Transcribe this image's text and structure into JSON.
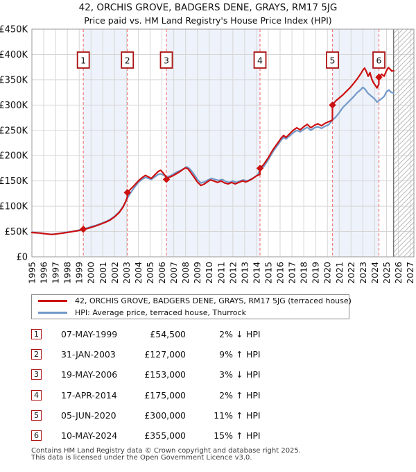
{
  "title": "42, ORCHIS GROVE, BADGERS DENE, GRAYS, RM17 5JG",
  "subtitle": "Price paid vs. HM Land Registry's House Price Index (HPI)",
  "legend": {
    "items": [
      {
        "label": "42, ORCHIS GROVE, BADGERS DENE, GRAYS, RM17 5JG (terraced house)",
        "color": "#cc1111"
      },
      {
        "label": "HPI: Average price, terraced house, Thurrock",
        "color": "#7099c9"
      }
    ]
  },
  "sales": [
    {
      "n": "1",
      "date": "07-MAY-1999",
      "price": "£54,500",
      "pct": "2%",
      "arrow": "↓",
      "hpi": "HPI",
      "year": 1999.35,
      "price_k": 54.5
    },
    {
      "n": "2",
      "date": "31-JAN-2003",
      "price": "£127,000",
      "pct": "9%",
      "arrow": "↑",
      "hpi": "HPI",
      "year": 2003.08,
      "price_k": 127
    },
    {
      "n": "3",
      "date": "19-MAY-2006",
      "price": "£153,000",
      "pct": "3%",
      "arrow": "↓",
      "hpi": "HPI",
      "year": 2006.38,
      "price_k": 153
    },
    {
      "n": "4",
      "date": "17-APR-2014",
      "price": "£175,000",
      "pct": "2%",
      "arrow": "↑",
      "hpi": "HPI",
      "year": 2014.3,
      "price_k": 175
    },
    {
      "n": "5",
      "date": "05-JUN-2020",
      "price": "£300,000",
      "pct": "11%",
      "arrow": "↑",
      "hpi": "HPI",
      "year": 2020.43,
      "price_k": 300
    },
    {
      "n": "6",
      "date": "10-MAY-2024",
      "price": "£355,000",
      "pct": "15%",
      "arrow": "↑",
      "hpi": "HPI",
      "year": 2024.36,
      "price_k": 355
    }
  ],
  "footer": {
    "line1": "Contains HM Land Registry data © Crown copyright and database right 2025.",
    "line2": "This data is licensed under the Open Government Licence v3.0."
  },
  "chart_data": {
    "type": "line",
    "title": "Price paid vs. HM Land Registry's House Price Index (HPI)",
    "y_unit": "GBP (thousands)",
    "x_range": [
      1995,
      2027.32
    ],
    "y_range": [
      0,
      450
    ],
    "y_ticks": [
      {
        "v": 0,
        "label": "£0"
      },
      {
        "v": 50,
        "label": "£50K"
      },
      {
        "v": 100,
        "label": "£100K"
      },
      {
        "v": 150,
        "label": "£150K"
      },
      {
        "v": 200,
        "label": "£200K"
      },
      {
        "v": 250,
        "label": "£250K"
      },
      {
        "v": 300,
        "label": "£300K"
      },
      {
        "v": 350,
        "label": "£350K"
      },
      {
        "v": 400,
        "label": "£400K"
      },
      {
        "v": 450,
        "label": "£450K"
      }
    ],
    "x_ticks": [
      1995,
      1996,
      1997,
      1998,
      1999,
      2000,
      2001,
      2002,
      2003,
      2004,
      2005,
      2006,
      2007,
      2008,
      2009,
      2010,
      2011,
      2012,
      2013,
      2014,
      2015,
      2016,
      2017,
      2018,
      2019,
      2020,
      2021,
      2022,
      2023,
      2024,
      2025,
      2026,
      2027
    ],
    "grid": true,
    "legend_position": "bottom",
    "data_end_year": 2025.6,
    "ownership_bands": [
      [
        1999.35,
        2003.08
      ],
      [
        2006.38,
        2014.3
      ],
      [
        2020.43,
        2024.36
      ]
    ],
    "colors": {
      "property_line": "#cc1111",
      "hpi_line": "#7099c9",
      "sale_dashed_line": "#f47c7c",
      "band_fill": "#eef2fa",
      "grid": "#d6d6d6",
      "frame": "#999999",
      "hatch": "#bbbbbb",
      "cutoff": "#777777",
      "marker_box_border": "#aa1111"
    },
    "series": [
      {
        "name": "42, ORCHIS GROVE, BADGERS DENE, GRAYS, RM17 5JG (terraced house)",
        "color": "#cc1111",
        "points": [
          [
            1995.0,
            48
          ],
          [
            1995.3,
            47.5
          ],
          [
            1995.6,
            47
          ],
          [
            1996.0,
            46
          ],
          [
            1996.4,
            44.8
          ],
          [
            1996.7,
            44.2
          ],
          [
            1997.0,
            45
          ],
          [
            1997.4,
            46.2
          ],
          [
            1997.8,
            47.5
          ],
          [
            1998.2,
            49
          ],
          [
            1998.6,
            50.5
          ],
          [
            1999.0,
            52
          ],
          [
            1999.35,
            54.5
          ],
          [
            1999.7,
            56
          ],
          [
            2000.0,
            58
          ],
          [
            2000.4,
            61
          ],
          [
            2000.8,
            64.5
          ],
          [
            2001.2,
            68
          ],
          [
            2001.6,
            72.5
          ],
          [
            2002.0,
            79
          ],
          [
            2002.4,
            88
          ],
          [
            2002.7,
            98
          ],
          [
            2002.95,
            110
          ],
          [
            2003.07,
            118
          ],
          [
            2003.08,
            127
          ],
          [
            2003.4,
            135
          ],
          [
            2003.7,
            142
          ],
          [
            2004.0,
            150
          ],
          [
            2004.3,
            156
          ],
          [
            2004.6,
            161
          ],
          [
            2004.85,
            158
          ],
          [
            2005.1,
            155
          ],
          [
            2005.4,
            162
          ],
          [
            2005.7,
            169
          ],
          [
            2005.9,
            171
          ],
          [
            2006.1,
            166
          ],
          [
            2006.3,
            160
          ],
          [
            2006.37,
            158
          ],
          [
            2006.38,
            153
          ],
          [
            2006.6,
            157
          ],
          [
            2006.9,
            160
          ],
          [
            2007.2,
            164
          ],
          [
            2007.5,
            168
          ],
          [
            2007.8,
            173
          ],
          [
            2008.0,
            176
          ],
          [
            2008.2,
            174
          ],
          [
            2008.4,
            168
          ],
          [
            2008.7,
            158
          ],
          [
            2009.0,
            148
          ],
          [
            2009.3,
            141
          ],
          [
            2009.6,
            144
          ],
          [
            2009.9,
            149
          ],
          [
            2010.1,
            152
          ],
          [
            2010.4,
            150
          ],
          [
            2010.7,
            147
          ],
          [
            2011.0,
            150
          ],
          [
            2011.3,
            146
          ],
          [
            2011.6,
            144
          ],
          [
            2011.9,
            147
          ],
          [
            2012.2,
            144
          ],
          [
            2012.5,
            147
          ],
          [
            2012.8,
            150
          ],
          [
            2013.1,
            148
          ],
          [
            2013.4,
            151
          ],
          [
            2013.7,
            155
          ],
          [
            2014.0,
            160
          ],
          [
            2014.29,
            163
          ],
          [
            2014.3,
            175
          ],
          [
            2014.6,
            182
          ],
          [
            2015.0,
            196
          ],
          [
            2015.4,
            212
          ],
          [
            2015.8,
            225
          ],
          [
            2016.1,
            235
          ],
          [
            2016.3,
            240
          ],
          [
            2016.5,
            236
          ],
          [
            2016.8,
            243
          ],
          [
            2017.1,
            250
          ],
          [
            2017.4,
            255
          ],
          [
            2017.7,
            251
          ],
          [
            2018.0,
            257
          ],
          [
            2018.3,
            262
          ],
          [
            2018.6,
            255
          ],
          [
            2018.9,
            260
          ],
          [
            2019.2,
            263
          ],
          [
            2019.5,
            259
          ],
          [
            2019.8,
            264
          ],
          [
            2020.1,
            267
          ],
          [
            2020.42,
            270
          ],
          [
            2020.43,
            300
          ],
          [
            2020.7,
            308
          ],
          [
            2021.0,
            314
          ],
          [
            2021.3,
            320
          ],
          [
            2021.6,
            327
          ],
          [
            2021.9,
            334
          ],
          [
            2022.2,
            342
          ],
          [
            2022.5,
            351
          ],
          [
            2022.8,
            361
          ],
          [
            2023.0,
            369
          ],
          [
            2023.15,
            373
          ],
          [
            2023.3,
            366
          ],
          [
            2023.45,
            357
          ],
          [
            2023.6,
            364
          ],
          [
            2023.75,
            352
          ],
          [
            2023.9,
            344
          ],
          [
            2024.05,
            339
          ],
          [
            2024.2,
            334
          ],
          [
            2024.35,
            341
          ],
          [
            2024.36,
            355
          ],
          [
            2024.6,
            361
          ],
          [
            2024.8,
            357
          ],
          [
            2025.0,
            368
          ],
          [
            2025.15,
            374
          ],
          [
            2025.3,
            371
          ],
          [
            2025.45,
            367
          ],
          [
            2025.6,
            368
          ]
        ]
      },
      {
        "name": "HPI: Average price, terraced house, Thurrock",
        "color": "#7099c9",
        "points": [
          [
            1995.0,
            48.5
          ],
          [
            1995.4,
            47.8
          ],
          [
            1995.8,
            47
          ],
          [
            1996.2,
            45.5
          ],
          [
            1996.6,
            44.5
          ],
          [
            1997.0,
            45.2
          ],
          [
            1997.4,
            46.5
          ],
          [
            1997.8,
            48
          ],
          [
            1998.2,
            49.5
          ],
          [
            1998.6,
            51
          ],
          [
            1999.0,
            53
          ],
          [
            1999.35,
            55.6
          ],
          [
            1999.7,
            57
          ],
          [
            2000.0,
            59.5
          ],
          [
            2000.4,
            62
          ],
          [
            2000.8,
            65.5
          ],
          [
            2001.2,
            69
          ],
          [
            2001.6,
            73.5
          ],
          [
            2002.0,
            80
          ],
          [
            2002.4,
            89
          ],
          [
            2002.7,
            99
          ],
          [
            2003.0,
            112
          ],
          [
            2003.08,
            116.5
          ],
          [
            2003.4,
            128
          ],
          [
            2003.7,
            138
          ],
          [
            2004.0,
            147
          ],
          [
            2004.3,
            153
          ],
          [
            2004.6,
            157
          ],
          [
            2004.85,
            155
          ],
          [
            2005.1,
            153
          ],
          [
            2005.4,
            158
          ],
          [
            2005.7,
            163
          ],
          [
            2005.9,
            164
          ],
          [
            2006.1,
            162
          ],
          [
            2006.38,
            157.7
          ],
          [
            2006.7,
            160
          ],
          [
            2007.0,
            164
          ],
          [
            2007.3,
            168
          ],
          [
            2007.6,
            171
          ],
          [
            2007.9,
            175
          ],
          [
            2008.1,
            178
          ],
          [
            2008.3,
            175
          ],
          [
            2008.6,
            167
          ],
          [
            2009.0,
            153
          ],
          [
            2009.3,
            146
          ],
          [
            2009.6,
            148
          ],
          [
            2009.9,
            152
          ],
          [
            2010.2,
            155
          ],
          [
            2010.5,
            153
          ],
          [
            2010.8,
            151
          ],
          [
            2011.1,
            153
          ],
          [
            2011.4,
            149
          ],
          [
            2011.7,
            147
          ],
          [
            2012.0,
            150
          ],
          [
            2012.3,
            147
          ],
          [
            2012.6,
            150
          ],
          [
            2012.9,
            152
          ],
          [
            2013.2,
            150
          ],
          [
            2013.5,
            153
          ],
          [
            2013.8,
            157
          ],
          [
            2014.1,
            162
          ],
          [
            2014.3,
            171.6
          ],
          [
            2014.6,
            178
          ],
          [
            2015.0,
            192
          ],
          [
            2015.4,
            208
          ],
          [
            2015.8,
            221
          ],
          [
            2016.1,
            231
          ],
          [
            2016.3,
            236
          ],
          [
            2016.5,
            233
          ],
          [
            2016.8,
            239
          ],
          [
            2017.1,
            245
          ],
          [
            2017.4,
            250
          ],
          [
            2017.7,
            247
          ],
          [
            2018.0,
            252
          ],
          [
            2018.3,
            256
          ],
          [
            2018.6,
            250
          ],
          [
            2018.9,
            255
          ],
          [
            2019.2,
            257
          ],
          [
            2019.5,
            254
          ],
          [
            2019.8,
            258
          ],
          [
            2020.1,
            261
          ],
          [
            2020.43,
            270.3
          ],
          [
            2020.7,
            276
          ],
          [
            2021.0,
            285
          ],
          [
            2021.3,
            295
          ],
          [
            2021.6,
            302
          ],
          [
            2021.9,
            309
          ],
          [
            2022.2,
            316
          ],
          [
            2022.5,
            324
          ],
          [
            2022.8,
            330
          ],
          [
            2023.0,
            335
          ],
          [
            2023.2,
            331
          ],
          [
            2023.4,
            324
          ],
          [
            2023.6,
            320
          ],
          [
            2023.8,
            316
          ],
          [
            2024.0,
            312
          ],
          [
            2024.2,
            306
          ],
          [
            2024.36,
            308.7
          ],
          [
            2024.6,
            313
          ],
          [
            2024.8,
            317
          ],
          [
            2025.0,
            326
          ],
          [
            2025.2,
            330
          ],
          [
            2025.4,
            325
          ],
          [
            2025.6,
            324
          ]
        ]
      }
    ]
  }
}
